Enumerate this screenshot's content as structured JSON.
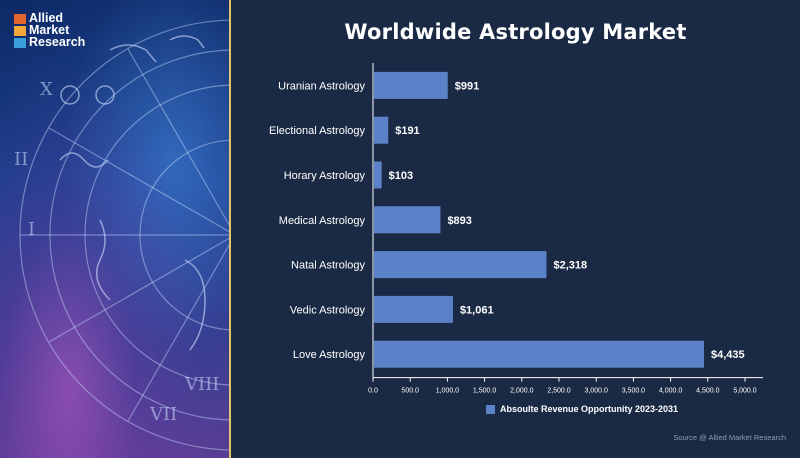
{
  "brand": {
    "name_lines": [
      "Allied",
      "Market",
      "Research"
    ],
    "square_colors": [
      "#e2662b",
      "#f2a73a",
      "#3aa0dc"
    ]
  },
  "chart_data": {
    "type": "bar",
    "orientation": "horizontal",
    "title": "Worldwide Astrology Market",
    "categories": [
      "Uranian Astrology",
      "Electional Astrology",
      "Horary Astrology",
      "Medical Astrology",
      "Natal Astrology",
      "Vedic Astrology",
      "Love Astrology"
    ],
    "series": [
      {
        "name": "Absoulte Revenue Opportunity 2023-2031",
        "values": [
          991,
          191,
          103,
          893,
          2318,
          1061,
          4435
        ],
        "labels": [
          "$991",
          "$191",
          "$103",
          "$893",
          "$2,318",
          "$1,061",
          "$4,435"
        ]
      }
    ],
    "x_ticks": [
      "0.0",
      "500.0",
      "1,000.0",
      "1,500.0",
      "2,000.0",
      "2,500.0",
      "3,000.0",
      "3,500.0",
      "4,000.0",
      "4,500.0",
      "5,000.0"
    ],
    "xlim": [
      0,
      5000
    ],
    "grid": false,
    "legend_position": "bottom",
    "colors": {
      "bar": "#5b82c8",
      "background": "#1b2a44",
      "axis": "#ffffff",
      "text": "#ffffff"
    }
  },
  "source_text": "Source @ Allied Market Research",
  "accent_color": "#e4c56a"
}
